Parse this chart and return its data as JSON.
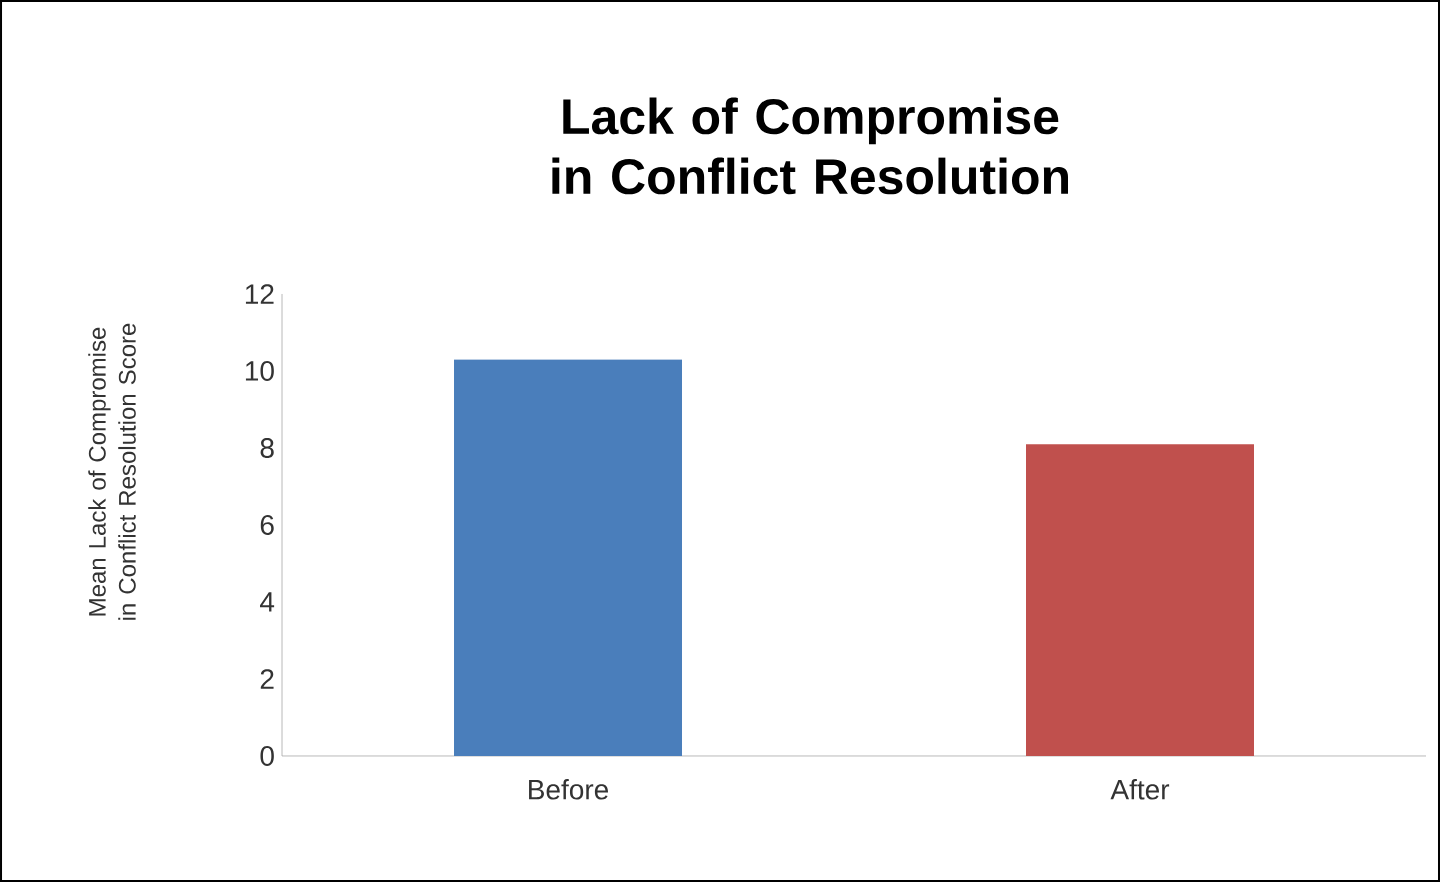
{
  "chart_data": {
    "type": "bar",
    "title": "Lack of Compromise in Conflict Resolution",
    "ylabel": "Mean Lack of Compromise in Conflict Resolution Score",
    "categories": [
      "Before",
      "After"
    ],
    "values": [
      10.3,
      8.1
    ],
    "colors": [
      "#4a7ebb",
      "#c0504d"
    ],
    "ylim": [
      0,
      12
    ],
    "yticks": [
      0,
      2,
      4,
      6,
      8,
      10,
      12
    ],
    "grid": false
  }
}
